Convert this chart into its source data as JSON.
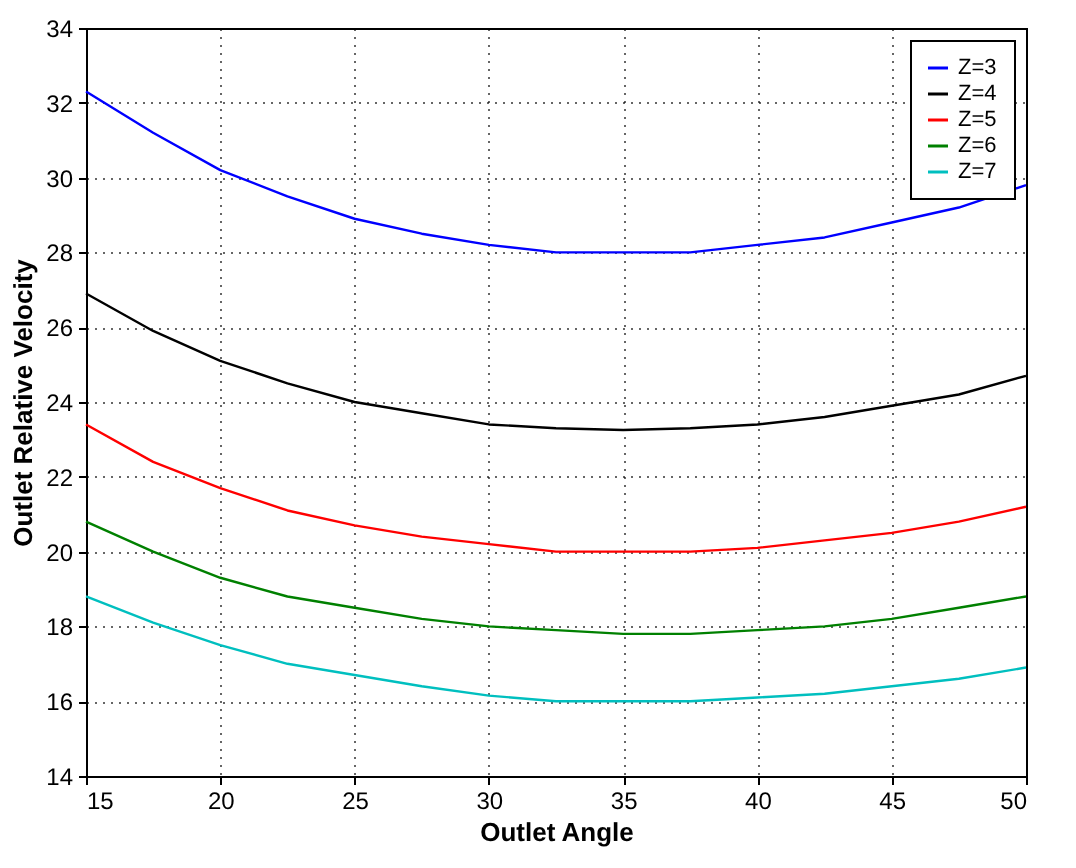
{
  "chart_data": {
    "type": "line",
    "xlabel": "Outlet Angle",
    "ylabel": "Outlet Relative Velocity",
    "x": [
      15,
      17.5,
      20,
      22.5,
      25,
      27.5,
      30,
      32.5,
      35,
      37.5,
      40,
      42.5,
      45,
      47.5,
      50
    ],
    "series": [
      {
        "name": "Z=3",
        "color": "#0000ff",
        "values": [
          32.3,
          31.2,
          30.2,
          29.5,
          28.9,
          28.5,
          28.2,
          28.0,
          28.0,
          28.0,
          28.2,
          28.4,
          28.8,
          29.2,
          29.8
        ]
      },
      {
        "name": "Z=4",
        "color": "#000000",
        "values": [
          26.9,
          25.9,
          25.1,
          24.5,
          24.0,
          23.7,
          23.4,
          23.3,
          23.25,
          23.3,
          23.4,
          23.6,
          23.9,
          24.2,
          24.7
        ]
      },
      {
        "name": "Z=5",
        "color": "#ff0000",
        "values": [
          23.4,
          22.4,
          21.7,
          21.1,
          20.7,
          20.4,
          20.2,
          20.0,
          20.0,
          20.0,
          20.1,
          20.3,
          20.5,
          20.8,
          21.2
        ]
      },
      {
        "name": "Z=6",
        "color": "#008000",
        "values": [
          20.8,
          20.0,
          19.3,
          18.8,
          18.5,
          18.2,
          18.0,
          17.9,
          17.8,
          17.8,
          17.9,
          18.0,
          18.2,
          18.5,
          18.8
        ]
      },
      {
        "name": "Z=7",
        "color": "#00bfbf",
        "values": [
          18.8,
          18.1,
          17.5,
          17.0,
          16.7,
          16.4,
          16.15,
          16.0,
          16.0,
          16.0,
          16.1,
          16.2,
          16.4,
          16.6,
          16.9
        ]
      }
    ],
    "xlim": [
      15,
      50
    ],
    "xticks": [
      15,
      20,
      25,
      30,
      35,
      40,
      45,
      50
    ],
    "ylim": [
      14,
      34
    ],
    "yticks": [
      14,
      16,
      18,
      20,
      22,
      24,
      26,
      28,
      30,
      32,
      34
    ],
    "grid": true,
    "legend": "top right",
    "marker": "none",
    "line_style": "solid"
  }
}
